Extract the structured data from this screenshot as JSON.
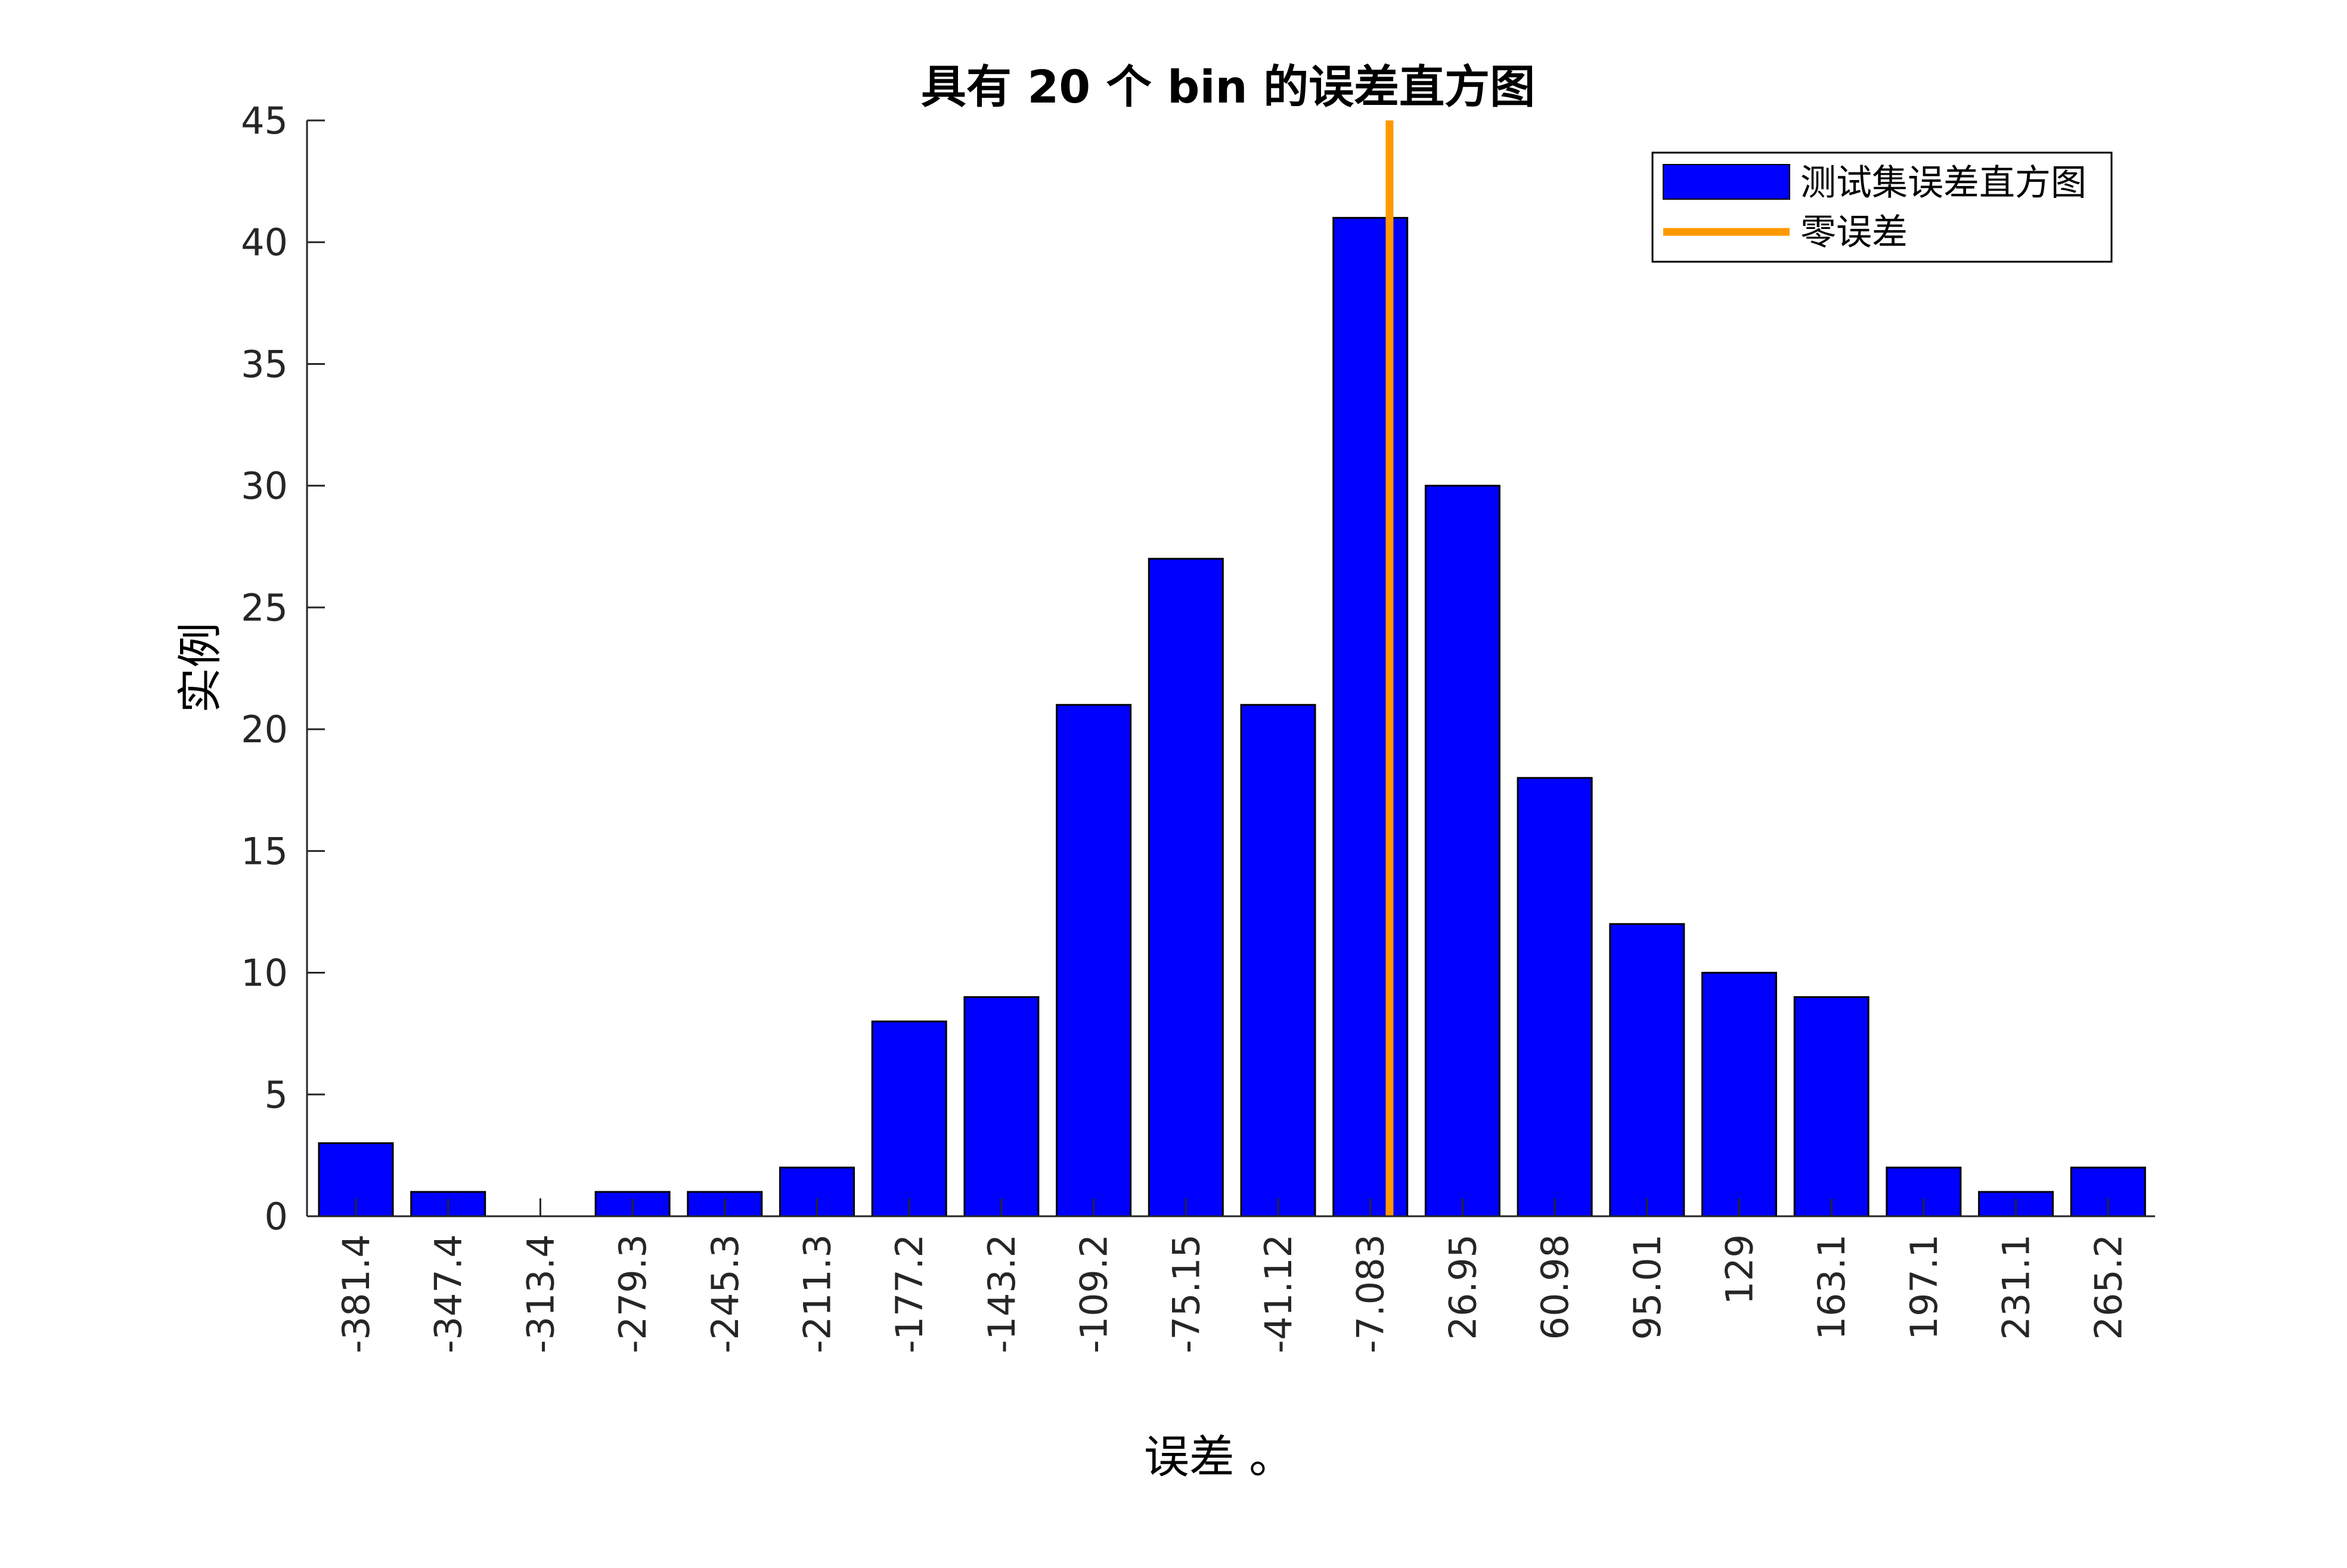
{
  "chart_data": {
    "type": "bar",
    "title": "具有 20 个 bin 的误差直方图",
    "xlabel": "误差 。",
    "ylabel": "实例",
    "categories": [
      "-381.4",
      "-347.4",
      "-313.4",
      "-279.3",
      "-245.3",
      "-211.3",
      "-177.2",
      "-143.2",
      "-109.2",
      "-75.15",
      "-41.12",
      "-7.083",
      "26.95",
      "60.98",
      "95.01",
      "129",
      "163.1",
      "197.1",
      "231.1",
      "265.2"
    ],
    "series": [
      {
        "name": "测试集误差直方图",
        "values": [
          3,
          1,
          0,
          1,
          1,
          2,
          8,
          9,
          21,
          27,
          21,
          41,
          30,
          18,
          12,
          10,
          9,
          2,
          1,
          2
        ],
        "color": "#0000ff"
      }
    ],
    "reference_line": {
      "name": "零误差",
      "x_value": 0,
      "color": "#ff9900"
    },
    "ylim": [
      0,
      45
    ],
    "yticks": [
      0,
      5,
      10,
      15,
      20,
      25,
      30,
      35,
      40,
      45
    ],
    "grid": false,
    "legend_position": "top-right"
  }
}
